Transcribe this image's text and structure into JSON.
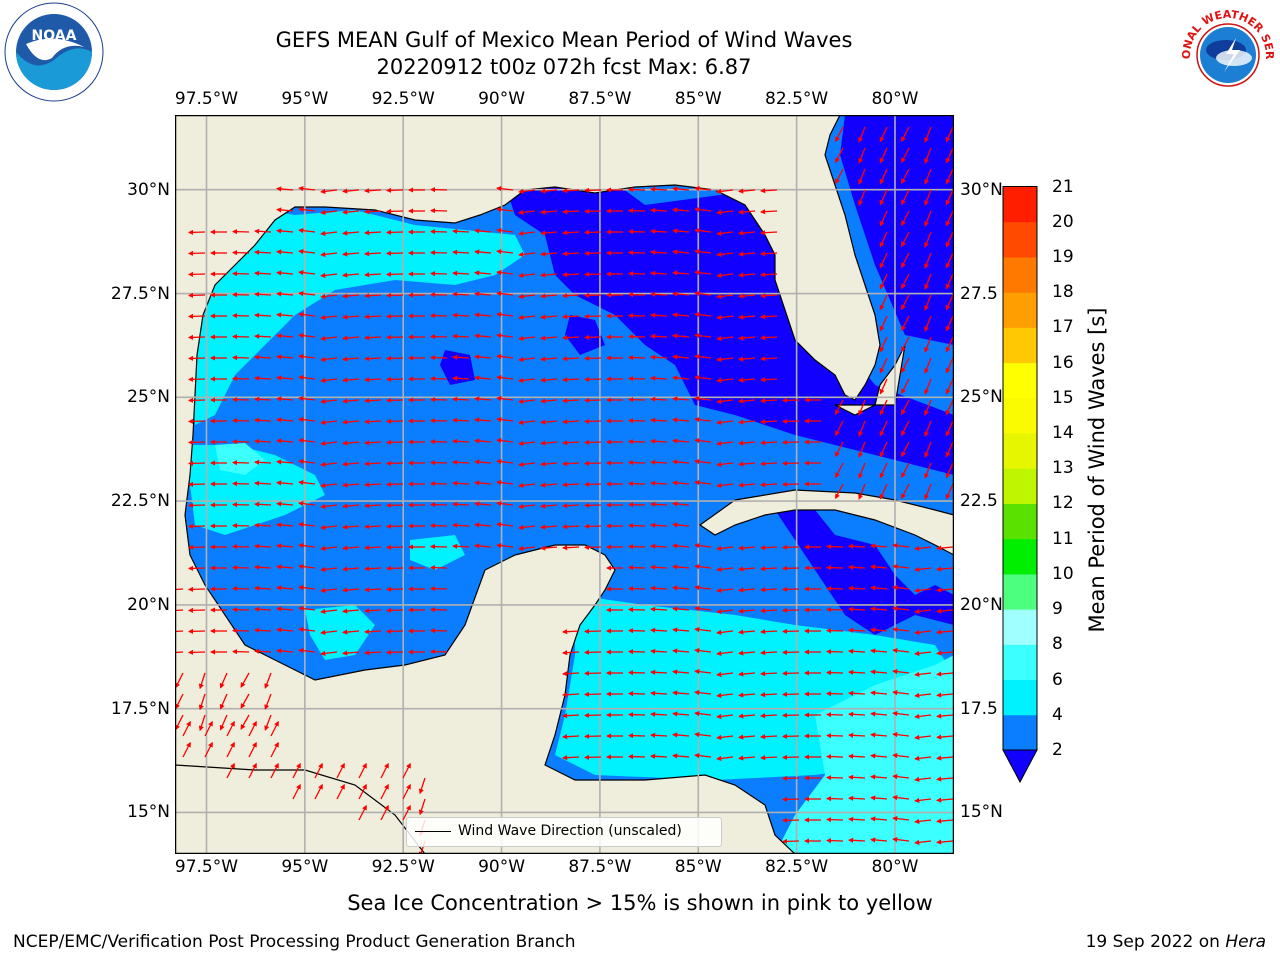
{
  "title": {
    "line1": "GEFS MEAN Gulf of Mexico Mean Period of Wind Waves",
    "line2": "20220912 t00z 072h fcst   Max: 6.87"
  },
  "map": {
    "lon_range": [
      -98.3,
      -78.5
    ],
    "lat_range": [
      14.0,
      31.8
    ],
    "lon_ticks": [
      "97.5°W",
      "95°W",
      "92.5°W",
      "90°W",
      "87.5°W",
      "85°W",
      "82.5°W",
      "80°W"
    ],
    "lon_values": [
      -97.5,
      -95,
      -92.5,
      -90,
      -87.5,
      -85,
      -82.5,
      -80
    ],
    "lat_ticks_left": [
      "30°N",
      "27.5°N",
      "25°N",
      "22.5°N",
      "20°N",
      "17.5°N",
      "15°N"
    ],
    "lat_ticks_right": [
      "30°N",
      "27.5",
      "25°N",
      "22.5",
      "20°N",
      "17.5",
      "15°N"
    ],
    "lat_values": [
      30,
      27.5,
      25,
      22.5,
      20,
      17.5,
      15
    ],
    "grid": true,
    "land_color": "#efeddb",
    "arrow_color": "#ff0000",
    "legend": {
      "label": "Wind Wave Direction (unscaled)",
      "placement": "bottom-center"
    }
  },
  "colorbar": {
    "label": "Mean Period of Wind Waves [s]",
    "ticks": [
      "2",
      "4",
      "6",
      "8",
      "9",
      "10",
      "11",
      "12",
      "13",
      "14",
      "15",
      "16",
      "17",
      "18",
      "19",
      "20",
      "21"
    ],
    "colors": [
      "#0a7eff",
      "#00f2ff",
      "#3cffff",
      "#a0ffff",
      "#4cff7e",
      "#00ee00",
      "#5ae100",
      "#c0f500",
      "#e6f500",
      "#fafa00",
      "#ffff00",
      "#ffc800",
      "#ff9e00",
      "#ff7800",
      "#ff4a00",
      "#ff1e00"
    ],
    "under_color": "#1200ff"
  },
  "footer": {
    "ice_note": "Sea Ice Concentration > 15% is shown in pink to yellow",
    "credit_left": "NCEP/EMC/Verification Post Processing Product Generation Branch",
    "credit_date": "19 Sep 2022 on ",
    "credit_machine": "Hera"
  },
  "logos": {
    "noaa_text": "NOAA",
    "nws_text": "NATIONAL WEATHER SERVICE"
  }
}
